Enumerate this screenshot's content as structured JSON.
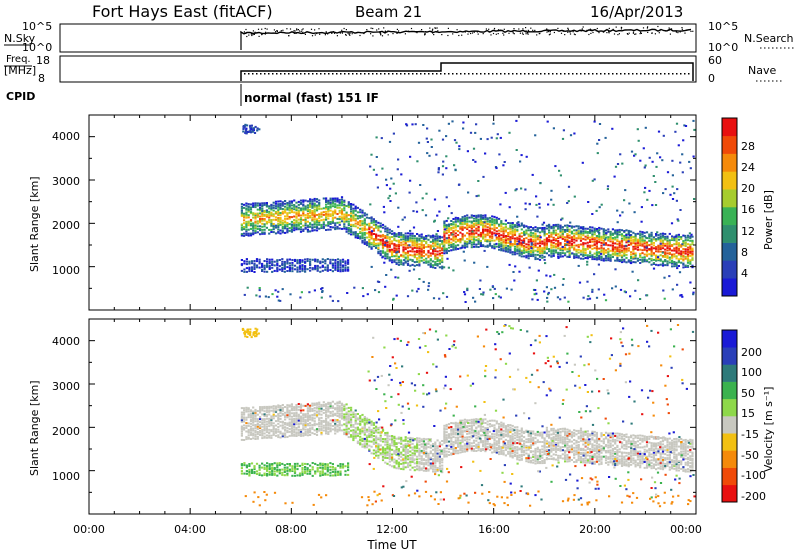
{
  "header": {
    "station": "Fort Hays East (fitACF)",
    "beam": "Beam 21",
    "date": "16/Apr/2013"
  },
  "colors": {
    "power": [
      "#1a1ad6",
      "#2a3fb8",
      "#24629a",
      "#2f8f6e",
      "#39b255",
      "#a6cc2e",
      "#f2c012",
      "#f58a0a",
      "#f04a08",
      "#e81010"
    ],
    "velocity": [
      "#1a1ad6",
      "#2a3fb8",
      "#2e7a7a",
      "#3bb24e",
      "#8ed84a",
      "#c8c8c0",
      "#f2c012",
      "#f58a0a",
      "#f04a08",
      "#e81010"
    ]
  },
  "chart_data": [
    {
      "type": "line",
      "name": "noise-panel",
      "left_label": "N.Sky",
      "right_label": "N.Search",
      "left_ticks": [
        "10^5",
        "10^0"
      ],
      "right_ticks": [
        "10^5",
        "10^0"
      ]
    },
    {
      "type": "line",
      "name": "frequency-panel",
      "left_label_line1": "Freq.",
      "left_label_line2": "[MHz]",
      "left_ticks": [
        "18",
        "8"
      ],
      "right_label": "Nave",
      "right_ticks": [
        "60",
        "0"
      ],
      "cpid_label": "CPID",
      "cpid_text": "normal (fast) 151 IF"
    },
    {
      "type": "heatmap",
      "name": "power-panel",
      "ylabel": "Slant Range [km]",
      "yticks": [
        "4000",
        "3000",
        "2000",
        "1000"
      ],
      "colorbar_label": "Power [dB]",
      "colorbar_ticks": [
        "28",
        "24",
        "20",
        "16",
        "12",
        "8",
        "4"
      ]
    },
    {
      "type": "heatmap",
      "name": "velocity-panel",
      "ylabel": "Slant Range [km]",
      "yticks": [
        "4000",
        "3000",
        "2000",
        "1000"
      ],
      "colorbar_label": "Velocity [m s⁻¹]",
      "colorbar_ticks": [
        "200",
        "100",
        "50",
        "15",
        "-15",
        "-50",
        "-100",
        "-200"
      ],
      "xlabel": "Time UT",
      "xticks": [
        "00:00",
        "04:00",
        "08:00",
        "12:00",
        "16:00",
        "20:00",
        "00:00"
      ]
    }
  ]
}
